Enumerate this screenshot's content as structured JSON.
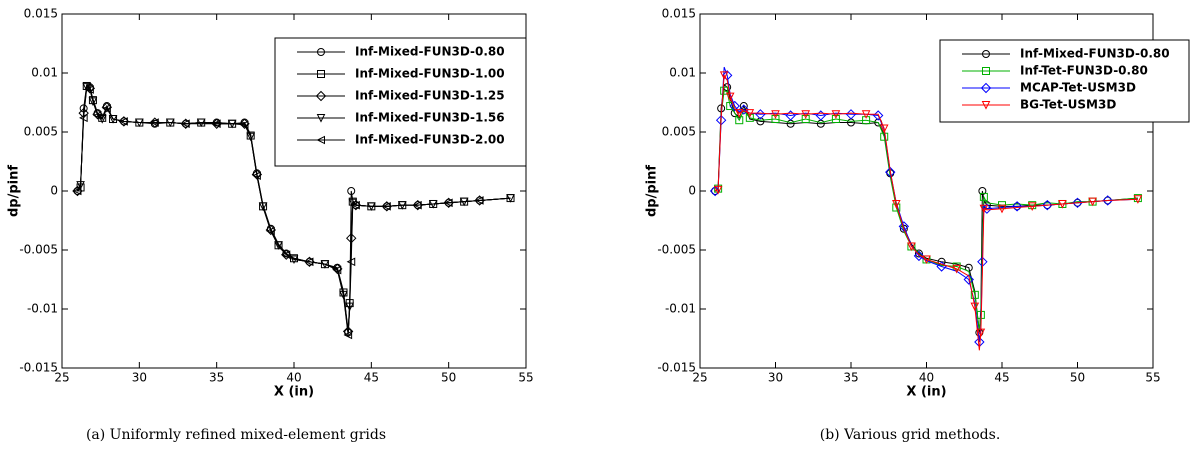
{
  "chart_data": [
    {
      "type": "line",
      "caption": "(a) Uniformly refined mixed-element grids",
      "xlabel": "X (in)",
      "ylabel": "dp/pinf",
      "xlim": [
        25,
        55
      ],
      "xticks": [
        25,
        30,
        35,
        40,
        45,
        50,
        55
      ],
      "ylim": [
        -0.015,
        0.015
      ],
      "yticks": [
        -0.015,
        -0.01,
        -0.005,
        0,
        0.005,
        0.01,
        0.015
      ],
      "x": [
        26,
        26.2,
        26.4,
        26.6,
        26.8,
        27,
        27.3,
        27.6,
        27.9,
        28.3,
        29,
        30,
        31,
        32,
        33,
        34,
        35,
        36,
        36.8,
        37.2,
        37.6,
        38,
        38.5,
        39,
        39.5,
        40,
        41,
        42,
        42.8,
        43.2,
        43.5,
        43.6,
        43.7,
        43.8,
        44,
        45,
        46,
        47,
        48,
        49,
        50,
        51,
        52,
        54
      ],
      "series": [
        {
          "name": "Inf-Mixed-FUN3D-0.80",
          "color": "#000000",
          "marker": "circle",
          "values": [
            0,
            0.0002,
            0.007,
            0.009,
            0.0088,
            0.0078,
            0.0066,
            0.0062,
            0.0072,
            0.0061,
            0.0059,
            0.0058,
            0.0057,
            0.0058,
            0.0057,
            0.0058,
            0.0058,
            0.0057,
            0.0058,
            0.0048,
            0.0015,
            -0.0012,
            -0.0032,
            -0.0045,
            -0.0053,
            -0.0057,
            -0.006,
            -0.0062,
            -0.0065,
            -0.0085,
            -0.012,
            -0.01,
            0,
            -0.0008,
            -0.0012,
            -0.0013,
            -0.0013,
            -0.0012,
            -0.0012,
            -0.0011,
            -0.001,
            -0.0009,
            -0.0008,
            -0.0006
          ]
        },
        {
          "name": "Inf-Mixed-FUN3D-1.00",
          "color": "#000000",
          "marker": "square",
          "values": [
            0,
            0.0003,
            0.0068,
            0.0089,
            0.0088,
            0.0077,
            0.0065,
            0.0062,
            0.0071,
            0.0061,
            0.0059,
            0.0058,
            0.0058,
            0.0058,
            0.0057,
            0.0058,
            0.0058,
            0.0057,
            0.0057,
            0.0047,
            0.0014,
            -0.0013,
            -0.0033,
            -0.0046,
            -0.0053,
            -0.0057,
            -0.006,
            -0.0062,
            -0.0066,
            -0.0086,
            -0.0118,
            -0.0095,
            -0.003,
            -0.0009,
            -0.0012,
            -0.0013,
            -0.0013,
            -0.0012,
            -0.0012,
            -0.0011,
            -0.001,
            -0.0009,
            -0.0008,
            -0.0006
          ]
        },
        {
          "name": "Inf-Mixed-FUN3D-1.25",
          "color": "#000000",
          "marker": "diamond",
          "values": [
            0,
            0.0004,
            0.0066,
            0.0089,
            0.0087,
            0.0077,
            0.0065,
            0.0061,
            0.0071,
            0.0061,
            0.0059,
            0.0058,
            0.0058,
            0.0058,
            0.0057,
            0.0058,
            0.0057,
            0.0057,
            0.0057,
            0.0047,
            0.0014,
            -0.0013,
            -0.0033,
            -0.0046,
            -0.0054,
            -0.0058,
            -0.006,
            -0.0062,
            -0.0066,
            -0.0087,
            -0.0119,
            -0.0097,
            -0.004,
            -0.001,
            -0.0012,
            -0.0013,
            -0.0013,
            -0.0012,
            -0.0012,
            -0.0011,
            -0.001,
            -0.0009,
            -0.0008,
            -0.0006
          ]
        },
        {
          "name": "Inf-Mixed-FUN3D-1.56",
          "color": "#000000",
          "marker": "tri-down",
          "values": [
            0,
            0.0005,
            0.0064,
            0.0088,
            0.0087,
            0.0076,
            0.0065,
            0.0061,
            0.007,
            0.0061,
            0.0059,
            0.0058,
            0.0058,
            0.0058,
            0.0057,
            0.0058,
            0.0057,
            0.0057,
            0.0057,
            0.0046,
            0.0013,
            -0.0013,
            -0.0034,
            -0.0046,
            -0.0054,
            -0.0058,
            -0.006,
            -0.0062,
            -0.0066,
            -0.0088,
            -0.0121,
            -0.0098,
            -0.005,
            -0.001,
            -0.0012,
            -0.0013,
            -0.0013,
            -0.0012,
            -0.0012,
            -0.0011,
            -0.001,
            -0.0009,
            -0.0008,
            -0.0006
          ]
        },
        {
          "name": "Inf-Mixed-FUN3D-2.00",
          "color": "#000000",
          "marker": "tri-left",
          "values": [
            0,
            0.0006,
            0.0062,
            0.0088,
            0.0086,
            0.0076,
            0.0064,
            0.0061,
            0.007,
            0.0061,
            0.0059,
            0.0058,
            0.0058,
            0.0058,
            0.0057,
            0.0057,
            0.0057,
            0.0057,
            0.0056,
            0.0046,
            0.0013,
            -0.0014,
            -0.0034,
            -0.0047,
            -0.0054,
            -0.0058,
            -0.006,
            -0.0062,
            -0.0067,
            -0.0089,
            -0.0122,
            -0.01,
            -0.006,
            -0.0011,
            -0.0012,
            -0.0013,
            -0.0013,
            -0.0012,
            -0.0012,
            -0.0011,
            -0.001,
            -0.0009,
            -0.0008,
            -0.0006
          ]
        }
      ]
    },
    {
      "type": "line",
      "caption": "(b) Various grid methods.",
      "xlabel": "X (in)",
      "ylabel": "dp/pinf",
      "xlim": [
        25,
        55
      ],
      "xticks": [
        25,
        30,
        35,
        40,
        45,
        50,
        55
      ],
      "ylim": [
        -0.015,
        0.015
      ],
      "yticks": [
        -0.015,
        -0.01,
        -0.005,
        0,
        0.005,
        0.01,
        0.015
      ],
      "x": [
        26,
        26.2,
        26.4,
        26.6,
        26.8,
        27,
        27.3,
        27.6,
        27.9,
        28.3,
        29,
        30,
        31,
        32,
        33,
        34,
        35,
        36,
        36.8,
        37.2,
        37.6,
        38,
        38.5,
        39,
        39.5,
        40,
        41,
        42,
        42.8,
        43.2,
        43.5,
        43.6,
        43.7,
        43.8,
        44,
        45,
        46,
        47,
        48,
        49,
        50,
        51,
        52,
        54
      ],
      "series": [
        {
          "name": "Inf-Mixed-FUN3D-0.80",
          "color": "#000000",
          "marker": "circle",
          "values": [
            0,
            0.0002,
            0.007,
            0.009,
            0.0088,
            0.0078,
            0.0066,
            0.0062,
            0.0072,
            0.0061,
            0.0059,
            0.0058,
            0.0057,
            0.0058,
            0.0057,
            0.0058,
            0.0058,
            0.0057,
            0.0058,
            0.0048,
            0.0015,
            -0.0012,
            -0.0032,
            -0.0045,
            -0.0053,
            -0.0057,
            -0.006,
            -0.0062,
            -0.0065,
            -0.0085,
            -0.012,
            -0.01,
            0,
            -0.0008,
            -0.0012,
            -0.0013,
            -0.0013,
            -0.0012,
            -0.0012,
            -0.0011,
            -0.001,
            -0.0009,
            -0.0008,
            -0.0006
          ]
        },
        {
          "name": "Inf-Tet-FUN3D-0.80",
          "color": "#00b000",
          "marker": "square",
          "values": [
            0,
            0.0002,
            0.0065,
            0.0085,
            0.0084,
            0.0072,
            0.0066,
            0.006,
            0.0068,
            0.0062,
            0.006,
            0.0061,
            0.0058,
            0.0061,
            0.0058,
            0.0061,
            0.0059,
            0.006,
            0.0058,
            0.0046,
            0.0012,
            -0.0014,
            -0.0034,
            -0.0047,
            -0.0052,
            -0.0058,
            -0.0063,
            -0.0064,
            -0.0068,
            -0.0088,
            -0.0118,
            -0.0105,
            -0.004,
            -0.0005,
            -0.001,
            -0.0012,
            -0.0011,
            -0.0012,
            -0.001,
            -0.0011,
            -0.0009,
            -0.0009,
            -0.0008,
            -0.0006
          ]
        },
        {
          "name": "MCAP-Tet-USM3D",
          "color": "#0000ff",
          "marker": "diamond",
          "values": [
            0,
            0.0001,
            0.006,
            0.0105,
            0.0098,
            0.0082,
            0.0072,
            0.0067,
            0.0069,
            0.0066,
            0.0065,
            0.0066,
            0.0064,
            0.0066,
            0.0064,
            0.0066,
            0.0065,
            0.0065,
            0.0064,
            0.0052,
            0.0016,
            -0.001,
            -0.003,
            -0.0046,
            -0.0055,
            -0.0059,
            -0.0064,
            -0.0068,
            -0.0075,
            -0.0095,
            -0.0128,
            -0.0115,
            -0.006,
            -0.0012,
            -0.0015,
            -0.0014,
            -0.0013,
            -0.0013,
            -0.0012,
            -0.0011,
            -0.001,
            -0.0009,
            -0.0008,
            -0.0007
          ]
        },
        {
          "name": "BG-Tet-USM3D",
          "color": "#ff0000",
          "marker": "tri-down",
          "values": [
            0,
            0.0001,
            0.0062,
            0.0098,
            0.0094,
            0.008,
            0.007,
            0.0066,
            0.0068,
            0.0066,
            0.0066,
            0.0065,
            0.0066,
            0.0065,
            0.0066,
            0.0065,
            0.0066,
            0.0065,
            0.0065,
            0.0053,
            0.0017,
            -0.0011,
            -0.0032,
            -0.0047,
            -0.0054,
            -0.0058,
            -0.0062,
            -0.0066,
            -0.0072,
            -0.0098,
            -0.0135,
            -0.012,
            -0.007,
            -0.0015,
            -0.0016,
            -0.0015,
            -0.0014,
            -0.0013,
            -0.0012,
            -0.0011,
            -0.001,
            -0.0009,
            -0.0008,
            -0.0007
          ]
        }
      ]
    }
  ]
}
